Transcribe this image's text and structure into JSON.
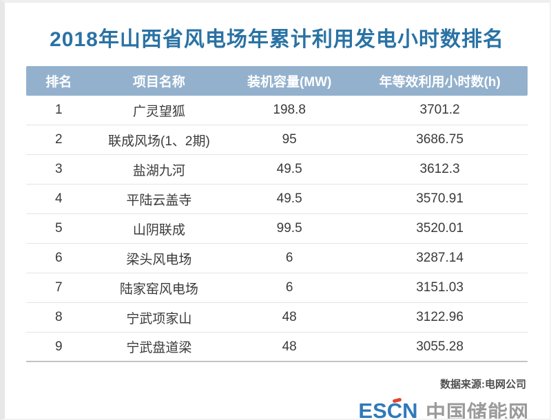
{
  "page": {
    "title": "2018年山西省风电场年累计利用发电小时数排名",
    "source_note": "数据来源:电网公司",
    "logo": {
      "brand": "ESCN",
      "site_name": "中国储能网"
    },
    "colors": {
      "title_blue": "#2a72a4",
      "header_bg": "#93b1cd",
      "header_text": "#ffffff",
      "body_text": "#3a3a3a",
      "brand_blue": "#2f79b9",
      "brand_gray": "#9b9b9b",
      "accent_red": "#e34234"
    }
  },
  "table": {
    "columns": [
      "排名",
      "项目名称",
      "装机容量(MW)",
      "年等效利用小时数(h)"
    ],
    "rows": [
      [
        "1",
        "广灵望狐",
        "198.8",
        "3701.2"
      ],
      [
        "2",
        "联成风场(1、2期)",
        "95",
        "3686.75"
      ],
      [
        "3",
        "盐湖九河",
        "49.5",
        "3612.3"
      ],
      [
        "4",
        "平陆云盖寺",
        "49.5",
        "3570.91"
      ],
      [
        "5",
        "山阴联成",
        "99.5",
        "3520.01"
      ],
      [
        "6",
        "梁头风电场",
        "6",
        "3287.14"
      ],
      [
        "7",
        "陆家窑风电场",
        "6",
        "3151.03"
      ],
      [
        "8",
        "宁武项家山",
        "48",
        "3122.96"
      ],
      [
        "9",
        "宁武盘道梁",
        "48",
        "3055.28"
      ]
    ]
  },
  "chart_data": {
    "type": "table",
    "title": "2018年山西省风电场年累计利用发电小时数排名",
    "columns": [
      "排名",
      "项目名称",
      "装机容量(MW)",
      "年等效利用小时数(h)"
    ],
    "rows": [
      [
        1,
        "广灵望狐",
        198.8,
        3701.2
      ],
      [
        2,
        "联成风场(1、2期)",
        95,
        3686.75
      ],
      [
        3,
        "盐湖九河",
        49.5,
        3612.3
      ],
      [
        4,
        "平陆云盖寺",
        49.5,
        3570.91
      ],
      [
        5,
        "山阴联成",
        99.5,
        3520.01
      ],
      [
        6,
        "梁头风电场",
        6,
        3287.14
      ],
      [
        7,
        "陆家窑风电场",
        6,
        3151.03
      ],
      [
        8,
        "宁武项家山",
        48,
        3122.96
      ],
      [
        9,
        "宁武盘道梁",
        48,
        3055.28
      ]
    ],
    "source": "电网公司"
  }
}
